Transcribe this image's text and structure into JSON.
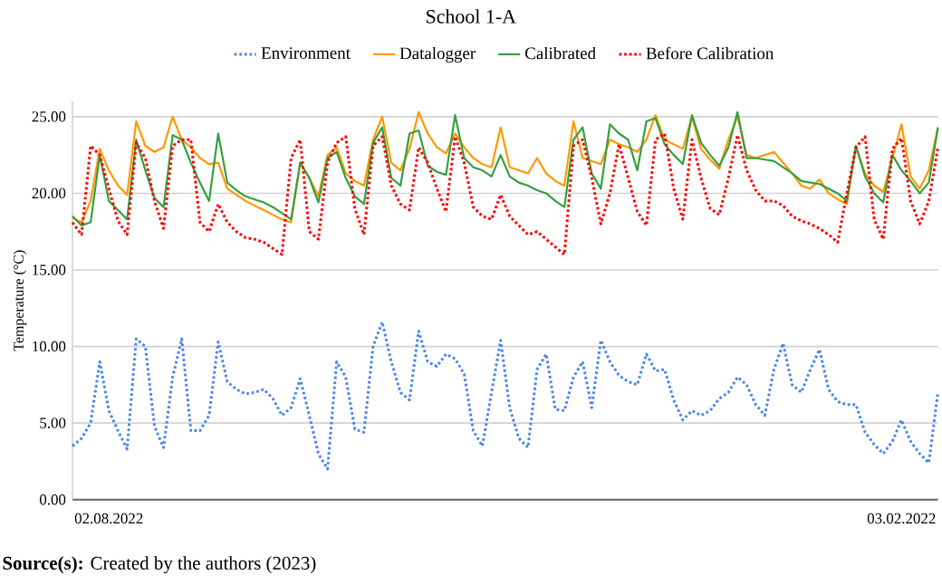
{
  "chart_data": {
    "type": "line",
    "title": "School 1-A",
    "ylabel": "Temperature (°C)",
    "annotations": [
      "**Source(s):** Created by the authors (2023)"
    ],
    "categories": [
      null,
      null,
      null,
      null,
      "02.08.2022",
      null,
      null,
      null,
      null,
      null,
      null,
      null,
      null,
      null,
      null,
      null,
      null,
      null,
      null,
      null,
      null,
      null,
      null,
      null,
      null,
      null,
      null,
      null,
      null,
      null,
      null,
      null,
      null,
      null,
      null,
      null,
      null,
      null,
      null,
      null,
      null,
      null,
      null,
      null,
      null,
      null,
      null,
      null,
      null,
      null,
      null,
      null,
      null,
      null,
      null,
      null,
      null,
      null,
      null,
      null,
      null,
      null,
      null,
      null,
      null,
      null,
      null,
      null,
      null,
      null,
      null,
      null,
      null,
      null,
      null,
      null,
      null,
      null,
      null,
      null,
      null,
      null,
      null,
      null,
      null,
      null,
      null,
      null,
      null,
      null,
      null,
      "03.02.2022",
      null,
      null,
      null,
      null
    ],
    "series": [
      {
        "name": "Environment",
        "color": "#4a86e8",
        "line_style": "dotted",
        "values": [
          3.5,
          4.0,
          5.0,
          9.0,
          5.8,
          4.5,
          3.3,
          10.5,
          10.0,
          4.8,
          3.4,
          8.0,
          10.5,
          4.5,
          4.5,
          5.5,
          10.3,
          7.7,
          7.2,
          6.9,
          7.0,
          7.2,
          6.6,
          5.5,
          6.0,
          7.9,
          5.5,
          3.0,
          2.0,
          9.0,
          8.0,
          4.6,
          4.4,
          10.0,
          11.6,
          9.0,
          7.0,
          6.5,
          11.0,
          9.0,
          8.7,
          9.5,
          9.2,
          8.2,
          4.5,
          3.5,
          7.0,
          10.4,
          6.0,
          4.0,
          3.4,
          8.5,
          9.5,
          5.9,
          5.8,
          8.0,
          9.0,
          6.0,
          10.4,
          9.0,
          8.1,
          7.7,
          7.5,
          9.5,
          8.4,
          8.5,
          6.5,
          5.2,
          5.8,
          5.5,
          5.8,
          6.6,
          7.0,
          8.0,
          7.5,
          6.2,
          5.5,
          8.5,
          10.2,
          7.5,
          7.0,
          8.5,
          9.8,
          7.2,
          6.4,
          6.2,
          6.2,
          4.4,
          3.6,
          3.0,
          3.8,
          5.2,
          3.8,
          3.0,
          2.4,
          7.0
        ]
      },
      {
        "name": "Datalogger",
        "color": "#ff9900",
        "line_style": "solid",
        "values": [
          18.4,
          18.1,
          19.5,
          22.9,
          21.5,
          20.5,
          19.9,
          24.7,
          23.1,
          22.7,
          23.0,
          25.0,
          23.5,
          23.0,
          22.3,
          21.9,
          22.0,
          20.3,
          19.9,
          19.5,
          19.2,
          18.9,
          18.6,
          18.3,
          18.1,
          22.0,
          21.0,
          19.8,
          22.5,
          23.0,
          21.3,
          20.8,
          20.5,
          23.5,
          25.0,
          22.0,
          21.5,
          22.9,
          25.3,
          23.9,
          23.0,
          22.6,
          23.9,
          23.0,
          22.3,
          21.9,
          21.7,
          24.3,
          21.7,
          21.5,
          21.3,
          22.3,
          21.3,
          20.8,
          20.5,
          24.7,
          22.3,
          22.1,
          21.9,
          23.5,
          23.2,
          23.0,
          22.7,
          23.5,
          25.1,
          23.5,
          23.2,
          22.9,
          25.0,
          22.9,
          22.2,
          21.6,
          23.5,
          25.0,
          22.5,
          22.3,
          22.5,
          22.7,
          22.0,
          21.3,
          20.5,
          20.3,
          20.9,
          20.0,
          19.6,
          19.3,
          23.0,
          21.3,
          20.5,
          20.1,
          22.3,
          24.5,
          21.1,
          20.3,
          21.5,
          24.3
        ]
      },
      {
        "name": "Calibrated",
        "color": "#34a040",
        "line_style": "solid",
        "values": [
          18.5,
          17.9,
          18.1,
          22.5,
          19.5,
          18.9,
          18.3,
          23.5,
          21.5,
          19.7,
          19.1,
          23.8,
          23.5,
          22.0,
          20.7,
          19.5,
          23.9,
          20.7,
          20.2,
          19.8,
          19.6,
          19.4,
          19.1,
          18.7,
          18.3,
          22.0,
          21.0,
          19.4,
          22.3,
          22.7,
          21.0,
          19.8,
          19.3,
          23.3,
          24.3,
          21.0,
          20.5,
          23.9,
          24.1,
          21.8,
          21.4,
          21.2,
          25.1,
          22.3,
          21.7,
          21.5,
          21.1,
          22.5,
          21.1,
          20.7,
          20.5,
          20.2,
          20.0,
          19.5,
          19.1,
          23.5,
          24.3,
          21.3,
          20.3,
          24.5,
          23.9,
          23.5,
          21.5,
          24.7,
          24.9,
          23.2,
          22.5,
          21.9,
          25.1,
          23.3,
          22.5,
          21.8,
          23.0,
          25.3,
          22.3,
          22.3,
          22.2,
          22.1,
          21.7,
          21.3,
          20.8,
          20.7,
          20.6,
          20.3,
          20.0,
          19.5,
          23.1,
          21.1,
          20.0,
          19.4,
          22.5,
          21.5,
          20.8,
          20.0,
          20.7,
          24.3
        ]
      },
      {
        "name": "Before Calibration",
        "color": "#ff0000",
        "line_style": "dotted",
        "values": [
          18.1,
          17.3,
          23.1,
          22.5,
          20.3,
          18.2,
          17.3,
          23.3,
          22.3,
          19.5,
          17.7,
          23.1,
          23.5,
          23.5,
          18.1,
          17.5,
          19.3,
          18.1,
          17.5,
          17.1,
          17.0,
          16.8,
          16.4,
          16.0,
          22.3,
          23.5,
          17.5,
          17.0,
          22.0,
          23.3,
          23.7,
          19.0,
          17.3,
          23.1,
          23.7,
          20.5,
          19.3,
          18.9,
          23.0,
          22.0,
          20.3,
          18.8,
          23.7,
          22.0,
          19.1,
          18.5,
          18.3,
          19.9,
          18.5,
          17.9,
          17.3,
          17.5,
          17.0,
          16.5,
          16.0,
          23.1,
          23.5,
          21.0,
          18.0,
          20.0,
          23.2,
          21.0,
          18.8,
          17.9,
          23.5,
          23.9,
          20.3,
          18.3,
          23.5,
          21.0,
          19.0,
          18.6,
          21.0,
          23.8,
          21.5,
          20.2,
          19.5,
          19.5,
          19.2,
          18.5,
          18.2,
          18.0,
          17.7,
          17.3,
          16.8,
          20.0,
          23.0,
          23.7,
          18.3,
          17.0,
          22.9,
          23.6,
          19.5,
          18.0,
          19.5,
          23.0
        ]
      }
    ],
    "ylim": [
      0,
      26
    ],
    "yticks": [
      {
        "value": 0,
        "label": "0.00"
      },
      {
        "value": 5,
        "label": "5.00"
      },
      {
        "value": 10,
        "label": "10.00"
      },
      {
        "value": 15,
        "label": "15.00"
      },
      {
        "value": 20,
        "label": "20.00"
      },
      {
        "value": 25,
        "label": "25.00"
      }
    ],
    "grid": "y",
    "legend": "top"
  }
}
